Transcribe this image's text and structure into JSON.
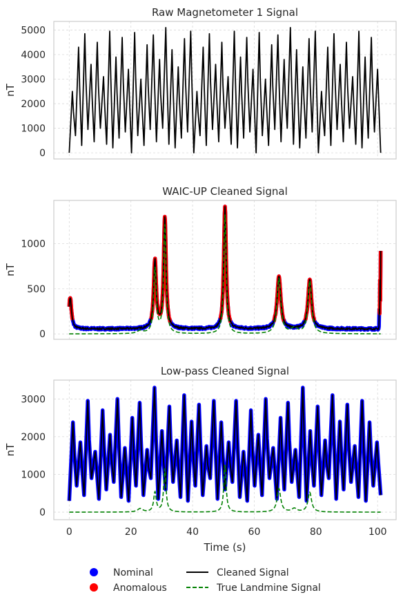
{
  "colors": {
    "raw": "#000000",
    "cleaned": "#000000",
    "nominal": "#0000ff",
    "anomalous": "#ff0000",
    "landmine": "#008000",
    "grid": "#d9d9d9",
    "spine": "#cccccc"
  },
  "legend": {
    "placement": "bottom-center",
    "items": [
      {
        "label": "Nominal",
        "kind": "dot",
        "color_key": "nominal"
      },
      {
        "label": "Anomalous",
        "kind": "dot",
        "color_key": "anomalous"
      },
      {
        "label": "Cleaned Signal",
        "kind": "line",
        "color_key": "cleaned"
      },
      {
        "label": "True Landmine Signal",
        "kind": "dashed",
        "color_key": "landmine"
      }
    ]
  },
  "chart_data": [
    {
      "type": "line",
      "title": "Raw Magnetometer 1 Signal",
      "ylabel": "nT",
      "xlabel": "",
      "xlim": [
        -5,
        106
      ],
      "ylim": [
        -250,
        5350
      ],
      "xticks": [
        0,
        20,
        40,
        60,
        80,
        100
      ],
      "yticks": [
        0,
        1000,
        2000,
        3000,
        4000,
        5000
      ],
      "show_xticklabels": false,
      "grid": true,
      "series": [
        {
          "kind": "oscillation",
          "color_key": "raw",
          "x": [
            0,
            101
          ],
          "cycles": 50,
          "lows": [
            0,
            700,
            300,
            950,
            450,
            1000,
            350,
            200,
            600,
            850
          ],
          "highs": [
            2500,
            4300,
            4850,
            3600,
            4500,
            3100,
            4950,
            3900,
            4700,
            3400,
            4900,
            3000,
            4400,
            4800,
            3800,
            5100,
            4200,
            3500,
            4650,
            4950
          ]
        }
      ]
    },
    {
      "type": "line",
      "title": "WAIC-UP Cleaned Signal",
      "ylabel": "nT",
      "xlabel": "",
      "xlim": [
        -5,
        106
      ],
      "ylim": [
        -60,
        1480
      ],
      "xticks": [
        0,
        20,
        40,
        60,
        80,
        100
      ],
      "yticks": [
        0,
        500,
        1000
      ],
      "show_xticklabels": false,
      "grid": true,
      "series": [
        {
          "kind": "peaks",
          "role": "cleaned",
          "x": [
            0,
            101
          ],
          "baseline": 55,
          "peaks": [
            {
              "x": 0.3,
              "height": 350,
              "width": 0.5
            },
            {
              "x": 27.8,
              "height": 760,
              "width": 0.5
            },
            {
              "x": 31.0,
              "height": 1230,
              "width": 0.45
            },
            {
              "x": 50.5,
              "height": 1360,
              "width": 0.45
            },
            {
              "x": 68.0,
              "height": 580,
              "width": 0.7
            },
            {
              "x": 78.0,
              "height": 540,
              "width": 0.7
            }
          ],
          "end_spike": 920
        },
        {
          "kind": "peaks",
          "role": "landmine",
          "color_key": "landmine",
          "x": [
            0,
            101
          ],
          "baseline": 0,
          "peaks": [
            {
              "x": 23.0,
              "height": 30,
              "width": 1.2
            },
            {
              "x": 27.8,
              "height": 720,
              "width": 0.5
            },
            {
              "x": 31.0,
              "height": 1200,
              "width": 0.45
            },
            {
              "x": 50.5,
              "height": 1320,
              "width": 0.45
            },
            {
              "x": 68.0,
              "height": 610,
              "width": 0.7
            },
            {
              "x": 73.0,
              "height": 60,
              "width": 1.2
            },
            {
              "x": 78.0,
              "height": 580,
              "width": 0.7
            }
          ]
        }
      ]
    },
    {
      "type": "line",
      "title": "Low-pass Cleaned Signal",
      "ylabel": "nT",
      "xlabel": "Time (s)",
      "xlim": [
        -5,
        106
      ],
      "ylim": [
        -200,
        3500
      ],
      "xticks": [
        0,
        20,
        40,
        60,
        80,
        100
      ],
      "yticks": [
        0,
        1000,
        2000,
        3000
      ],
      "show_xticklabels": true,
      "grid": true,
      "series": [
        {
          "kind": "oscillation",
          "role": "cleaned",
          "x": [
            0,
            101
          ],
          "cycles": 42,
          "lows": [
            300,
            700,
            450,
            900,
            350,
            600,
            800,
            400
          ],
          "highs": [
            2380,
            1850,
            2950,
            1600,
            2700,
            2050,
            3000,
            1700,
            2500,
            2900,
            1650,
            3300,
            2150,
            2800,
            1900,
            3100,
            2400,
            2850,
            1750,
            2950
          ]
        },
        {
          "kind": "peaks",
          "role": "landmine",
          "color_key": "landmine",
          "x": [
            0,
            101
          ],
          "baseline": 0,
          "peaks": [
            {
              "x": 23.0,
              "height": 90,
              "width": 1.0
            },
            {
              "x": 27.8,
              "height": 520,
              "width": 0.5
            },
            {
              "x": 31.0,
              "height": 1150,
              "width": 0.45
            },
            {
              "x": 50.5,
              "height": 1250,
              "width": 0.45
            },
            {
              "x": 68.0,
              "height": 620,
              "width": 0.7
            },
            {
              "x": 73.0,
              "height": 90,
              "width": 1.0
            },
            {
              "x": 78.0,
              "height": 520,
              "width": 0.7
            }
          ]
        }
      ]
    }
  ]
}
